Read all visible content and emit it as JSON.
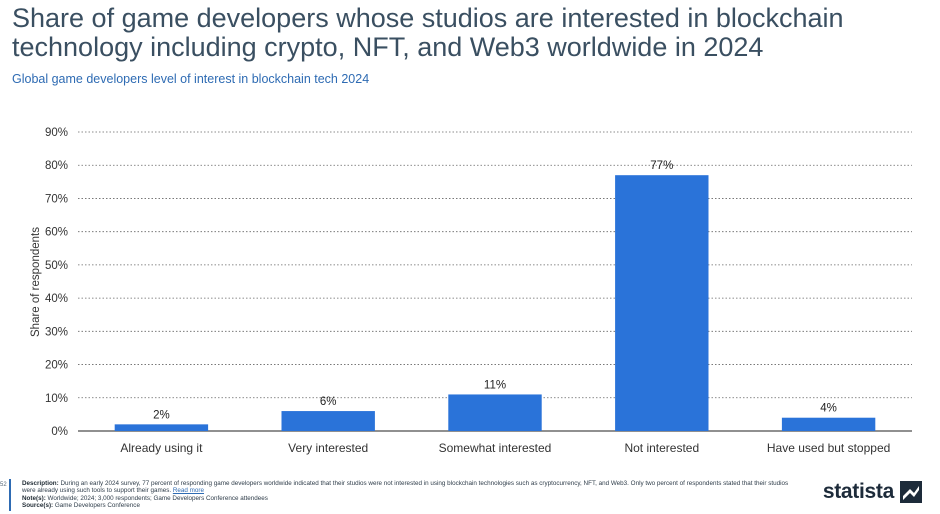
{
  "page": {
    "title": "Share of game developers whose studios are interested in blockchain technology including crypto, NFT, and Web3 worldwide in 2024",
    "subtitle": "Global game developers level of interest in blockchain tech 2024"
  },
  "footer": {
    "page_number": "52",
    "description_label": "Description:",
    "description": "During an early 2024 survey, 77 percent of responding game developers worldwide indicated that their studios were not interested in using blockchain technologies such as cryptocurrency, NFT, and Web3. Only two percent of respondents stated that their studios were already using such tools to support their games.",
    "read_more": "Read more",
    "notes_label": "Note(s):",
    "notes": "Worldwide; 2024; 3,000 respondents; Game Developers Conference attendees",
    "source_label": "Source(s):",
    "source": "Game Developers Conference",
    "brand": "statista"
  },
  "colors": {
    "bar": "#2a73d9",
    "grid": "#666666",
    "title": "#3a4f61",
    "subtitle": "#2e6bb3"
  },
  "chart_data": {
    "type": "bar",
    "categories": [
      "Already using it",
      "Very interested",
      "Somewhat interested",
      "Not interested",
      "Have used but stopped"
    ],
    "values": [
      2,
      6,
      11,
      77,
      4
    ],
    "value_labels": [
      "2%",
      "6%",
      "11%",
      "77%",
      "4%"
    ],
    "ylabel": "Share of respondents",
    "ylim": [
      0,
      90
    ],
    "yticks": [
      0,
      10,
      20,
      30,
      40,
      50,
      60,
      70,
      80,
      90
    ],
    "ytick_labels": [
      "0%",
      "10%",
      "20%",
      "30%",
      "40%",
      "50%",
      "60%",
      "70%",
      "80%",
      "90%"
    ],
    "grid": true
  }
}
